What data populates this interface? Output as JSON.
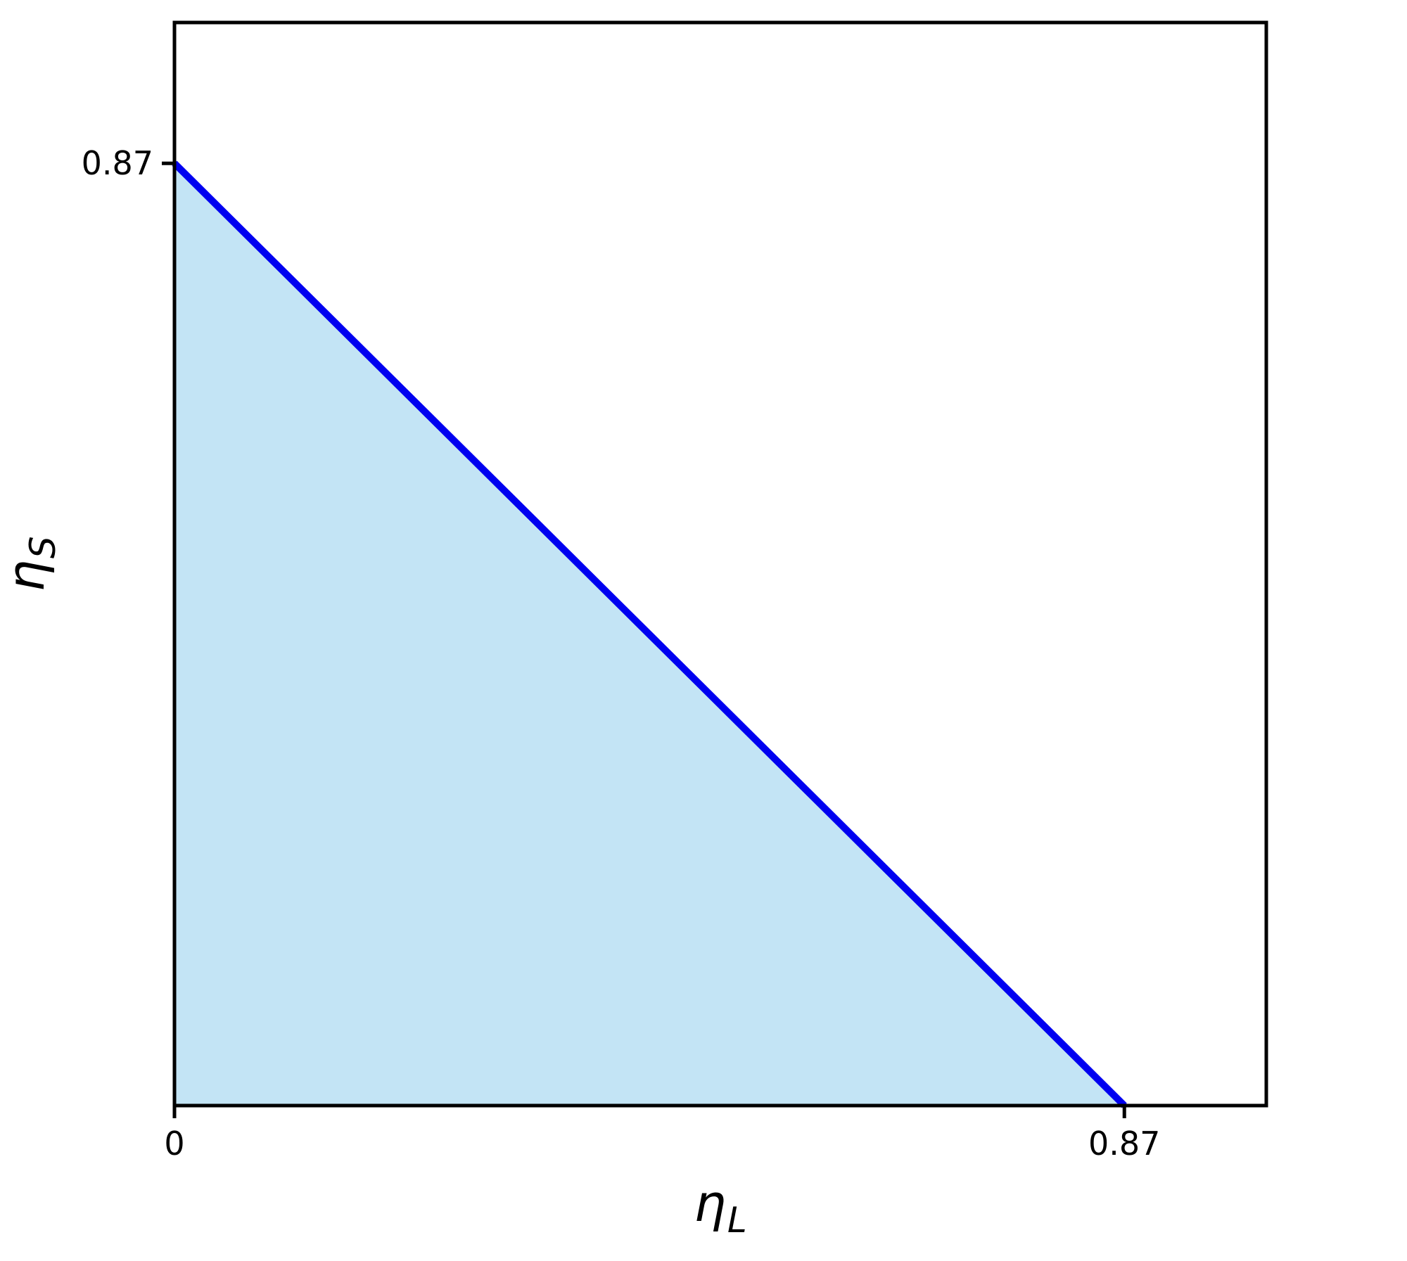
{
  "figure": {
    "background_color": "#ffffff",
    "axis_color": "#000000",
    "tick_label_color": "#000000"
  },
  "chart_data": {
    "type": "area",
    "title": "",
    "xlabel": "η_L",
    "ylabel": "η_S",
    "xlabel_parts": {
      "base": "η",
      "sub": "L"
    },
    "ylabel_parts": {
      "base": "η",
      "sub": "S"
    },
    "xlim": [
      0,
      1.0
    ],
    "ylim": [
      0,
      1.0
    ],
    "grid": false,
    "legend_position": "none",
    "x_ticks": [
      {
        "value": 0,
        "label": "0"
      },
      {
        "value": 0.87,
        "label": "0.87"
      }
    ],
    "y_ticks": [
      {
        "value": 0.87,
        "label": "0.87"
      }
    ],
    "series": [
      {
        "name": "tradeoff-boundary-line",
        "x": [
          0,
          0.87
        ],
        "y": [
          0.87,
          0
        ],
        "line_color": "#0000f0",
        "line_width": 10,
        "fill_color": "#c3e4f5",
        "fill_to": "origin"
      }
    ]
  }
}
